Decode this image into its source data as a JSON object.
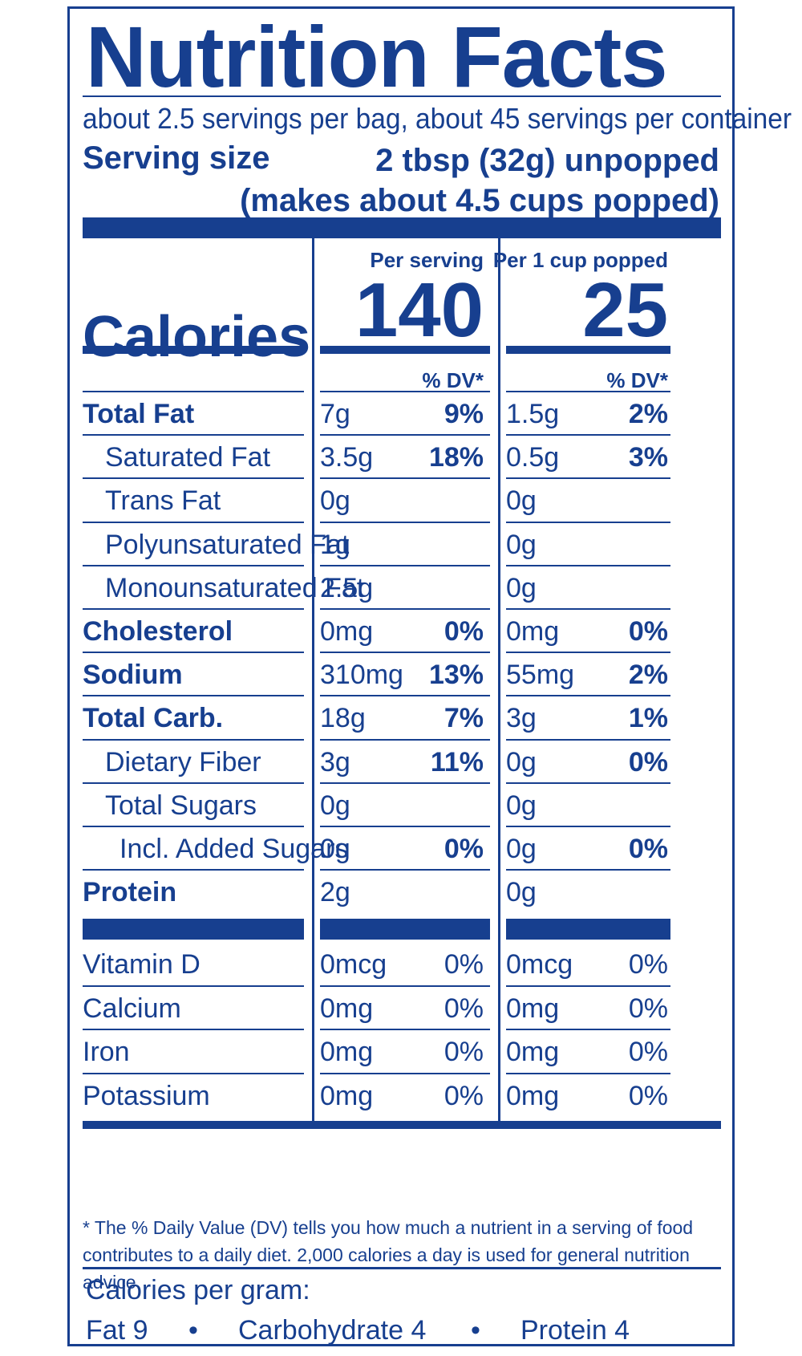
{
  "title": "Nutrition Facts",
  "servings_per": "about 2.5 servings per bag, about 45 servings per container",
  "serving_size": {
    "label": "Serving size",
    "value_line1": "2 tbsp (32g) unpopped",
    "value_line2": "(makes about 4.5 cups popped)"
  },
  "calories": {
    "label": "Calories",
    "col1_header": "Per serving",
    "col2_header": "Per 1 cup popped",
    "col1_value": "140",
    "col2_value": "25"
  },
  "dv_header": "% DV*",
  "nutrients": [
    {
      "name": "Total Fat",
      "amt1": "7g",
      "pct1": "9%",
      "amt2": "1.5g",
      "pct2": "2%"
    },
    {
      "name": "Saturated Fat",
      "amt1": "3.5g",
      "pct1": "18%",
      "amt2": "0.5g",
      "pct2": "3%"
    },
    {
      "name": "Trans Fat",
      "amt1": "0g",
      "pct1": "",
      "amt2": "0g",
      "pct2": ""
    },
    {
      "name": "Polyunsaturated Fat",
      "amt1": "1g",
      "pct1": "",
      "amt2": "0g",
      "pct2": ""
    },
    {
      "name": "Monounsaturated Fat",
      "amt1": "2.5g",
      "pct1": "",
      "amt2": "0g",
      "pct2": ""
    },
    {
      "name": "Cholesterol",
      "amt1": "0mg",
      "pct1": "0%",
      "amt2": "0mg",
      "pct2": "0%"
    },
    {
      "name": "Sodium",
      "amt1": "310mg",
      "pct1": "13%",
      "amt2": "55mg",
      "pct2": "2%"
    },
    {
      "name": "Total Carb.",
      "amt1": "18g",
      "pct1": "7%",
      "amt2": "3g",
      "pct2": "1%"
    },
    {
      "name": "Dietary Fiber",
      "amt1": "3g",
      "pct1": "11%",
      "amt2": "0g",
      "pct2": "0%"
    },
    {
      "name": "Total Sugars",
      "amt1": "0g",
      "pct1": "",
      "amt2": "0g",
      "pct2": ""
    },
    {
      "name": "Incl. Added Sugars",
      "amt1": "0g",
      "pct1": "0%",
      "amt2": "0g",
      "pct2": "0%"
    },
    {
      "name": "Protein",
      "amt1": "2g",
      "pct1": "",
      "amt2": "0g",
      "pct2": ""
    }
  ],
  "vitamins": [
    {
      "name": "Vitamin D",
      "amt1": "0mcg",
      "pct1": "0%",
      "amt2": "0mcg",
      "pct2": "0%"
    },
    {
      "name": "Calcium",
      "amt1": "0mg",
      "pct1": "0%",
      "amt2": "0mg",
      "pct2": "0%"
    },
    {
      "name": "Iron",
      "amt1": "0mg",
      "pct1": "0%",
      "amt2": "0mg",
      "pct2": "0%"
    },
    {
      "name": "Potassium",
      "amt1": "0mg",
      "pct1": "0%",
      "amt2": "0mg",
      "pct2": "0%"
    }
  ],
  "footnote": "* The % Daily Value (DV) tells you how much a nutrient in a serving of food contributes to a daily diet. 2,000 calories a day is used for general nutrition advice.",
  "calories_per_gram": {
    "label": "Calories per gram:",
    "fat": "Fat 9",
    "carb": "Carbohydrate 4",
    "protein": "Protein 4",
    "separator": "•"
  },
  "colors": {
    "ink": "#173f8f",
    "background": "#ffffff"
  }
}
